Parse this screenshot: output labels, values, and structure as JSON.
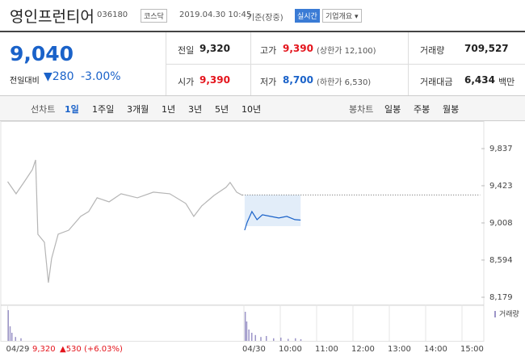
{
  "header": {
    "name": "영인프런티어",
    "code": "036180",
    "market": "코스닥",
    "datetime": "2019.04.30 10:45",
    "basis": "기준(장중)",
    "realtime": "실시간",
    "company_info": "기업개요"
  },
  "quote": {
    "price": "9,040",
    "change_label": "전일대비",
    "change": "280",
    "change_pct": "-3.00%"
  },
  "stats": [
    [
      {
        "label": "전일",
        "value": "9,320"
      },
      {
        "label": "고가",
        "value": "9,390",
        "note": "(상한가 12,100)"
      },
      {
        "label": "거래량",
        "value": "709,527"
      }
    ],
    [
      {
        "label": "시가",
        "value": "9,390"
      },
      {
        "label": "저가",
        "value": "8,700",
        "note": "(하한가 6,530)"
      },
      {
        "label": "거래대금",
        "value": "6,434",
        "unit": "백만"
      }
    ]
  ],
  "tabs": {
    "line_label": "선차트",
    "line": [
      "1일",
      "1주일",
      "3개월",
      "1년",
      "3년",
      "5년",
      "10년"
    ],
    "candle_label": "봉차트",
    "candle": [
      "일봉",
      "주봉",
      "월봉"
    ]
  },
  "chart_data": {
    "type": "line",
    "series": [
      {
        "color": "#b5b5b5",
        "x": [
          0,
          0.23,
          0.46,
          0.68,
          0.77,
          0.83,
          1.01,
          1.12,
          1.21,
          1.39,
          1.68,
          2.01,
          2.23,
          2.46,
          2.79,
          3.12,
          3.57,
          4.01,
          4.46,
          4.9,
          5.12,
          5.34,
          5.68,
          6.01,
          6.12,
          6.3,
          6.46
        ],
        "values": [
          9468,
          9333,
          9468,
          9603,
          9711,
          8882,
          8792,
          8342,
          8612,
          8882,
          8927,
          9081,
          9135,
          9288,
          9243,
          9333,
          9288,
          9351,
          9333,
          9225,
          9081,
          9198,
          9315,
          9405,
          9459,
          9351,
          9315
        ]
      },
      {
        "color": "#1a62c9",
        "x": [
          6.52,
          6.59,
          6.72,
          6.86,
          7.01,
          7.23,
          7.46,
          7.68,
          7.9,
          8.06
        ],
        "values": [
          8927,
          9017,
          9135,
          9045,
          9099,
          9081,
          9063,
          9081,
          9045,
          9040
        ]
      }
    ],
    "reference": 9320,
    "volume": {
      "label": "거래량",
      "color": "#9c95c8",
      "ylim": [
        0,
        100
      ],
      "x": [
        0,
        0.05,
        0.1,
        0.2,
        0.35,
        6.52,
        6.56,
        6.62,
        6.7,
        6.8,
        6.95,
        7.1,
        7.3,
        7.5,
        7.7,
        7.9,
        8.05
      ],
      "values": [
        95,
        45,
        25,
        12,
        8,
        90,
        60,
        35,
        25,
        18,
        12,
        15,
        8,
        10,
        6,
        8,
        5
      ]
    },
    "xlim": [
      0,
      13
    ],
    "xticks": [
      {
        "value": 0,
        "label": "04/29"
      },
      {
        "value": 6.5,
        "label": "04/30"
      },
      {
        "value": 7.5,
        "label": "10:00"
      },
      {
        "value": 8.5,
        "label": "11:00"
      },
      {
        "value": 9.5,
        "label": "12:00"
      },
      {
        "value": 10.5,
        "label": "13:00"
      },
      {
        "value": 11.5,
        "label": "14:00"
      },
      {
        "value": 12.5,
        "label": "15:00"
      }
    ],
    "ylim": [
      8090,
      10100
    ],
    "yticks": [
      {
        "value": 9837,
        "label": "9,837"
      },
      {
        "value": 9423,
        "label": "9,423"
      },
      {
        "value": 9008,
        "label": "9,008"
      },
      {
        "value": 8594,
        "label": "8,594"
      },
      {
        "value": 8179,
        "label": "8,179"
      }
    ],
    "annotation": {
      "price": "9,320",
      "change": "▲530 (+6.03%)"
    }
  }
}
